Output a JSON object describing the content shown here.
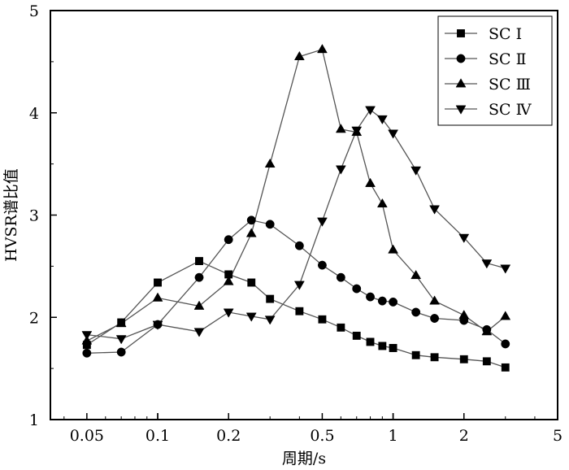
{
  "chart_data": {
    "type": "line",
    "title": "",
    "xlabel": "周期/s",
    "ylabel": "HVSR谱比值",
    "x_scale": "log",
    "xlim": [
      0.035,
      5
    ],
    "ylim": [
      1,
      5
    ],
    "x_ticks": [
      0.05,
      0.1,
      0.2,
      0.5,
      1,
      2,
      5
    ],
    "x_tick_labels": [
      "0.05",
      "0.1",
      "0.2",
      "0.5",
      "1",
      "2",
      "5"
    ],
    "y_ticks": [
      1,
      2,
      3,
      4,
      5
    ],
    "y_tick_labels": [
      "1",
      "2",
      "3",
      "4",
      "5"
    ],
    "grid": false,
    "legend_position": "top-right",
    "line_color": "#555555",
    "marker_color": "#000000",
    "series": [
      {
        "name": "SC Ⅰ",
        "marker": "square",
        "x": [
          0.05,
          0.07,
          0.1,
          0.15,
          0.2,
          0.25,
          0.3,
          0.4,
          0.5,
          0.6,
          0.7,
          0.8,
          0.9,
          1.0,
          1.25,
          1.5,
          2.0,
          2.5,
          3.0
        ],
        "y": [
          1.73,
          1.95,
          2.34,
          2.55,
          2.42,
          2.34,
          2.18,
          2.06,
          1.98,
          1.9,
          1.82,
          1.76,
          1.72,
          1.7,
          1.63,
          1.61,
          1.59,
          1.57,
          1.51
        ]
      },
      {
        "name": "SC Ⅱ",
        "marker": "circle",
        "x": [
          0.05,
          0.07,
          0.1,
          0.15,
          0.2,
          0.25,
          0.3,
          0.4,
          0.5,
          0.6,
          0.7,
          0.8,
          0.9,
          1.0,
          1.25,
          1.5,
          2.0,
          2.5,
          3.0
        ],
        "y": [
          1.65,
          1.66,
          1.93,
          2.39,
          2.76,
          2.95,
          2.91,
          2.7,
          2.51,
          2.39,
          2.28,
          2.2,
          2.16,
          2.15,
          2.05,
          1.99,
          1.97,
          1.88,
          1.74
        ]
      },
      {
        "name": "SC Ⅲ",
        "marker": "triangle-up",
        "x": [
          0.05,
          0.07,
          0.1,
          0.15,
          0.2,
          0.25,
          0.3,
          0.4,
          0.5,
          0.6,
          0.7,
          0.8,
          0.9,
          1.0,
          1.25,
          1.5,
          2.0,
          2.5,
          3.0
        ],
        "y": [
          1.77,
          1.94,
          2.19,
          2.11,
          2.35,
          2.82,
          3.5,
          4.55,
          4.62,
          3.84,
          3.81,
          3.31,
          3.11,
          2.66,
          2.41,
          2.16,
          2.02,
          1.86,
          2.01
        ]
      },
      {
        "name": "SC Ⅳ",
        "marker": "triangle-down",
        "x": [
          0.05,
          0.07,
          0.1,
          0.15,
          0.2,
          0.25,
          0.3,
          0.4,
          0.5,
          0.6,
          0.7,
          0.8,
          0.9,
          1.0,
          1.25,
          1.5,
          2.0,
          2.5,
          3.0
        ],
        "y": [
          1.83,
          1.79,
          1.93,
          1.86,
          2.05,
          2.01,
          1.98,
          2.32,
          2.94,
          3.45,
          3.83,
          4.03,
          3.94,
          3.8,
          3.44,
          3.06,
          2.78,
          2.53,
          2.48
        ]
      }
    ]
  }
}
